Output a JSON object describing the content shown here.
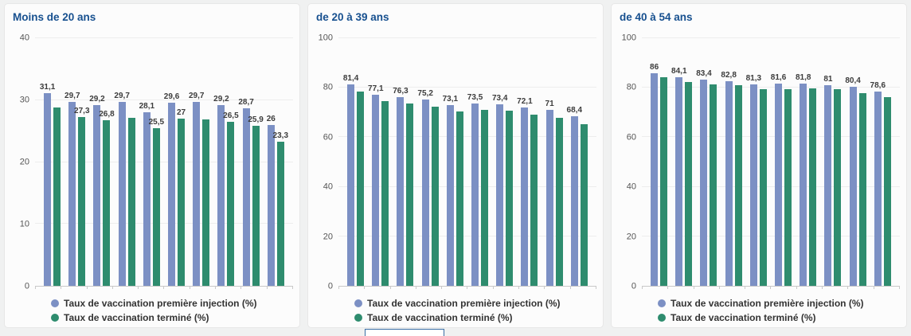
{
  "page": {
    "background": "#f0f1f1"
  },
  "colors": {
    "first_injection": "#7C90C4",
    "completed": "#2E8C6E",
    "title": "#17508f"
  },
  "legend": {
    "items": [
      {
        "key": "first_injection",
        "label": "Taux de vaccination première injection (%)",
        "color": "#7C90C4"
      },
      {
        "key": "completed",
        "label": "Taux de vaccination terminé (%)",
        "color": "#2E8C6E"
      }
    ]
  },
  "chart_data": [
    {
      "type": "bar",
      "title": "Moins de 20 ans",
      "xlabel": "",
      "ylabel": "",
      "ylim": [
        0,
        40
      ],
      "yticks": [
        0,
        10,
        20,
        30,
        40
      ],
      "grid": false,
      "legend_position": "bottom-left",
      "series": [
        {
          "name": "Taux de vaccination première injection (%)",
          "color": "#7C90C4",
          "values": [
            31.1,
            29.7,
            29.2,
            29.7,
            28.1,
            29.6,
            29.7,
            29.2,
            28.7,
            26
          ],
          "labels": [
            "31,1",
            "29,7",
            "29,2",
            "29,7",
            "28,1",
            "29,6",
            "29,7",
            "29,2",
            "28,7",
            "26"
          ]
        },
        {
          "name": "Taux de vaccination terminé (%)",
          "color": "#2E8C6E",
          "values": [
            28.8,
            27.3,
            26.8,
            27.1,
            25.5,
            27,
            26.9,
            26.5,
            25.9,
            23.3
          ],
          "labels": [
            null,
            "27,3",
            "26,8",
            null,
            "25,5",
            "27",
            null,
            "26,5",
            "25,9",
            "23,3"
          ]
        }
      ]
    },
    {
      "type": "bar",
      "title": "de 20 à 39 ans",
      "xlabel": "",
      "ylabel": "",
      "ylim": [
        0,
        100
      ],
      "yticks": [
        0,
        20,
        40,
        60,
        80,
        100
      ],
      "grid": false,
      "legend_position": "bottom-left",
      "series": [
        {
          "name": "Taux de vaccination première injection (%)",
          "color": "#7C90C4",
          "values": [
            81.4,
            77.1,
            76.3,
            75.2,
            73.1,
            73.5,
            73.4,
            72.1,
            71,
            68.4
          ],
          "labels": [
            "81,4",
            "77,1",
            "76,3",
            "75,2",
            "73,1",
            "73,5",
            "73,4",
            "72,1",
            "71",
            "68,4"
          ]
        },
        {
          "name": "Taux de vaccination terminé (%)",
          "color": "#2E8C6E",
          "values": [
            78.5,
            74.6,
            73.6,
            72.5,
            70.3,
            71,
            70.9,
            69.2,
            68,
            65.4
          ],
          "labels": [
            null,
            null,
            null,
            null,
            null,
            null,
            null,
            null,
            null,
            null
          ]
        }
      ]
    },
    {
      "type": "bar",
      "title": "de 40 à 54 ans",
      "xlabel": "",
      "ylabel": "",
      "ylim": [
        0,
        100
      ],
      "yticks": [
        0,
        20,
        40,
        60,
        80,
        100
      ],
      "grid": false,
      "legend_position": "bottom-left",
      "series": [
        {
          "name": "Taux de vaccination première injection (%)",
          "color": "#7C90C4",
          "values": [
            86,
            84.1,
            83.4,
            82.8,
            81.3,
            81.6,
            81.8,
            81,
            80.4,
            78.6
          ],
          "labels": [
            "86",
            "84,1",
            "83,4",
            "82,8",
            "81,3",
            "81,6",
            "81,8",
            "81",
            "80,4",
            "78,6"
          ]
        },
        {
          "name": "Taux de vaccination terminé (%)",
          "color": "#2E8C6E",
          "values": [
            84.4,
            82.2,
            81.5,
            80.9,
            79.4,
            79.5,
            79.9,
            79.3,
            77.9,
            76.1
          ],
          "labels": [
            null,
            null,
            null,
            null,
            null,
            null,
            null,
            null,
            null,
            null
          ]
        }
      ]
    }
  ]
}
